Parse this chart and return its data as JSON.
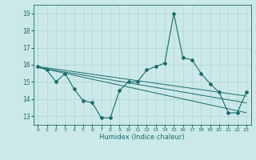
{
  "x": [
    0,
    1,
    2,
    3,
    4,
    5,
    6,
    7,
    8,
    9,
    10,
    11,
    12,
    13,
    14,
    15,
    16,
    17,
    18,
    19,
    20,
    21,
    22,
    23
  ],
  "y_main": [
    15.9,
    15.7,
    15.0,
    15.5,
    14.6,
    13.9,
    13.8,
    12.9,
    12.9,
    14.5,
    15.0,
    15.0,
    15.7,
    15.9,
    16.1,
    19.0,
    16.4,
    16.3,
    15.5,
    14.9,
    14.4,
    13.2,
    13.2,
    14.4
  ],
  "trend1": [
    15.85,
    15.735,
    15.62,
    15.505,
    15.39,
    15.275,
    15.16,
    15.045,
    14.93,
    14.815,
    14.7,
    14.585,
    14.47,
    14.355,
    14.24,
    14.125,
    14.01,
    13.895,
    13.78,
    13.665,
    13.55,
    13.435,
    13.32,
    13.205
  ],
  "trend2": [
    15.85,
    15.76,
    15.67,
    15.58,
    15.49,
    15.4,
    15.31,
    15.22,
    15.13,
    15.04,
    14.95,
    14.86,
    14.77,
    14.68,
    14.59,
    14.5,
    14.41,
    14.32,
    14.23,
    14.14,
    14.05,
    13.96,
    13.87,
    13.78
  ],
  "trend3": [
    15.9,
    15.825,
    15.75,
    15.675,
    15.6,
    15.525,
    15.45,
    15.375,
    15.3,
    15.225,
    15.15,
    15.075,
    15.0,
    14.925,
    14.85,
    14.775,
    14.7,
    14.625,
    14.55,
    14.475,
    14.4,
    14.325,
    14.25,
    14.175
  ],
  "bg_color": "#cce9e9",
  "line_color": "#1a6b6b",
  "grid_color": "#aed4d4",
  "xlabel": "Humidex (Indice chaleur)",
  "ylim": [
    12.5,
    19.5
  ],
  "xlim": [
    -0.5,
    23.5
  ],
  "yticks": [
    13,
    14,
    15,
    16,
    17,
    18,
    19
  ],
  "xticks": [
    0,
    1,
    2,
    3,
    4,
    5,
    6,
    7,
    8,
    9,
    10,
    11,
    12,
    13,
    14,
    15,
    16,
    17,
    18,
    19,
    20,
    21,
    22,
    23
  ]
}
